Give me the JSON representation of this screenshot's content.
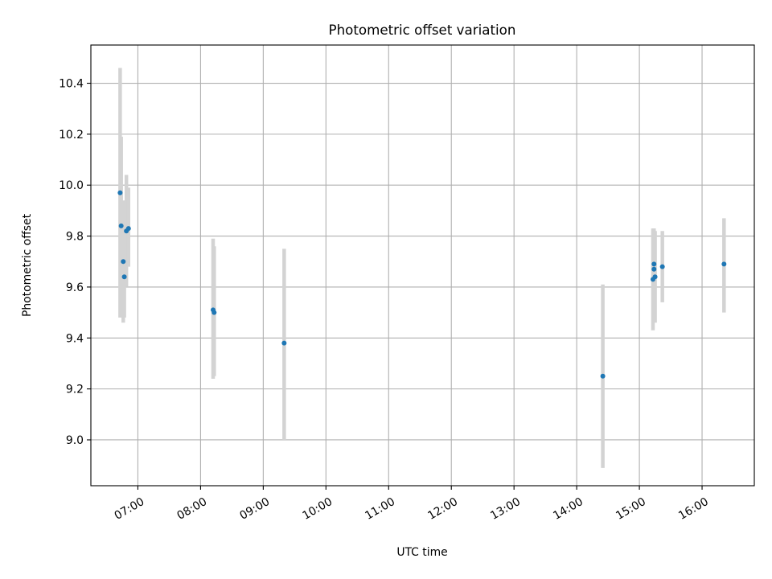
{
  "chart_data": {
    "type": "scatter",
    "title": "Photometric offset variation",
    "xlabel": "UTC time",
    "ylabel": "Photometric offset",
    "x_unit": "UTC time (HH:MM)",
    "xlim": [
      "06:15",
      "16:50"
    ],
    "ylim": [
      8.82,
      10.55
    ],
    "x_ticks": [
      "07:00",
      "08:00",
      "09:00",
      "10:00",
      "11:00",
      "12:00",
      "13:00",
      "14:00",
      "15:00",
      "16:00"
    ],
    "y_ticks": [
      9.0,
      9.2,
      9.4,
      9.6,
      9.8,
      10.0,
      10.2,
      10.4
    ],
    "y_tick_labels": [
      "9.0",
      "9.2",
      "9.4",
      "9.6",
      "9.8",
      "10.0",
      "10.2",
      "10.4"
    ],
    "grid": true,
    "x_tick_rotation": "30 degrees",
    "colors": {
      "points": "#1f77b4",
      "error_bars": "#d3d3d3",
      "grid": "#b0b0b0"
    },
    "series": [
      {
        "values": [
          {
            "x": "06:43",
            "y": 9.97,
            "yerr_low": 9.48,
            "yerr_high": 10.46
          },
          {
            "x": "06:44",
            "y": 9.84,
            "yerr_low": 9.49,
            "yerr_high": 10.19
          },
          {
            "x": "06:46",
            "y": 9.7,
            "yerr_low": 9.46,
            "yerr_high": 9.94
          },
          {
            "x": "06:47",
            "y": 9.64,
            "yerr_low": 9.48,
            "yerr_high": 9.8
          },
          {
            "x": "06:49",
            "y": 9.82,
            "yerr_low": 9.6,
            "yerr_high": 10.04
          },
          {
            "x": "06:51",
            "y": 9.83,
            "yerr_low": 9.68,
            "yerr_high": 9.99
          },
          {
            "x": "08:12",
            "y": 9.51,
            "yerr_low": 9.24,
            "yerr_high": 9.79
          },
          {
            "x": "08:13",
            "y": 9.5,
            "yerr_low": 9.25,
            "yerr_high": 9.76
          },
          {
            "x": "09:20",
            "y": 9.38,
            "yerr_low": 9.0,
            "yerr_high": 9.75
          },
          {
            "x": "14:25",
            "y": 9.25,
            "yerr_low": 8.89,
            "yerr_high": 9.61
          },
          {
            "x": "15:13",
            "y": 9.63,
            "yerr_low": 9.43,
            "yerr_high": 9.83
          },
          {
            "x": "15:14",
            "y": 9.69,
            "yerr_low": 9.55,
            "yerr_high": 9.83
          },
          {
            "x": "15:14",
            "y": 9.67,
            "yerr_low": 9.5,
            "yerr_high": 9.83
          },
          {
            "x": "15:15",
            "y": 9.64,
            "yerr_low": 9.46,
            "yerr_high": 9.82
          },
          {
            "x": "15:22",
            "y": 9.68,
            "yerr_low": 9.54,
            "yerr_high": 9.82
          },
          {
            "x": "16:21",
            "y": 9.69,
            "yerr_low": 9.5,
            "yerr_high": 9.87
          }
        ]
      }
    ]
  }
}
